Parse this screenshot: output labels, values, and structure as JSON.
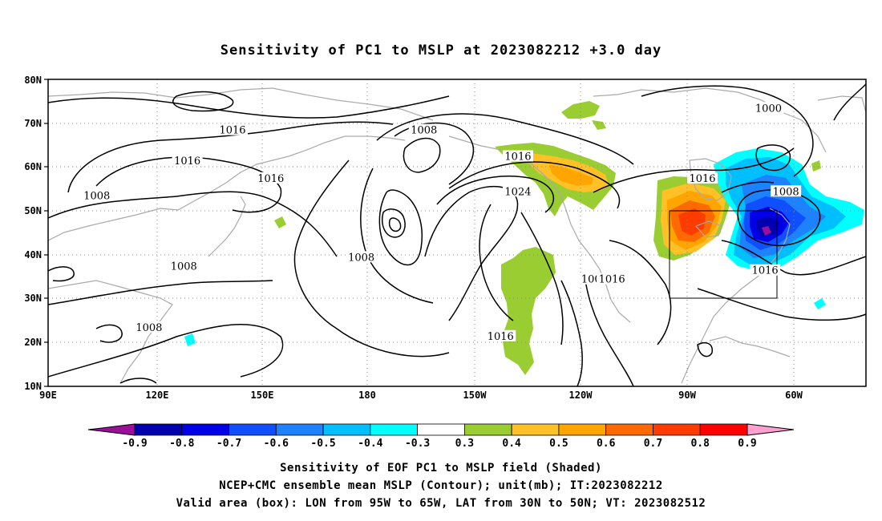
{
  "title": "Sensitivity of PC1 to MSLP at 2023082212 +3.0 day",
  "axes": {
    "lat_ticks": [
      "10N",
      "20N",
      "30N",
      "40N",
      "50N",
      "60N",
      "70N",
      "80N"
    ],
    "lon_ticks": [
      "90E",
      "120E",
      "150E",
      "180",
      "150W",
      "120W",
      "90W",
      "60W"
    ]
  },
  "contour_labels": [
    {
      "text": "1016",
      "lon": 143,
      "lat": 68
    },
    {
      "text": "1008",
      "lon": 198,
      "lat": 68
    },
    {
      "text": "1000",
      "lon": 297,
      "lat": 73
    },
    {
      "text": "1016",
      "lon": 130,
      "lat": 61
    },
    {
      "text": "1016",
      "lon": 225,
      "lat": 62
    },
    {
      "text": "1016",
      "lon": 154,
      "lat": 57
    },
    {
      "text": "1024",
      "lon": 225,
      "lat": 54
    },
    {
      "text": "1016",
      "lon": 278,
      "lat": 57
    },
    {
      "text": "1008",
      "lon": 302,
      "lat": 54
    },
    {
      "text": "1008",
      "lon": 104,
      "lat": 53
    },
    {
      "text": "1008",
      "lon": 180,
      "lat": 39
    },
    {
      "text": "1008",
      "lon": 129,
      "lat": 37
    },
    {
      "text": "1008",
      "lon": 247,
      "lat": 34
    },
    {
      "text": "1016",
      "lon": 252,
      "lat": 34
    },
    {
      "text": "1016",
      "lon": 296,
      "lat": 36
    },
    {
      "text": "1008",
      "lon": 119,
      "lat": 23
    },
    {
      "text": "1016",
      "lon": 220,
      "lat": 21
    }
  ],
  "colorbar": {
    "labels": [
      "-0.9",
      "-0.8",
      "-0.7",
      "-0.6",
      "-0.5",
      "-0.4",
      "-0.3",
      "0.3",
      "0.4",
      "0.5",
      "0.6",
      "0.7",
      "0.8",
      "0.9"
    ],
    "colors": [
      "#9b0f9b",
      "#0000b0",
      "#0000e6",
      "#0f4fff",
      "#1e82ff",
      "#00bfff",
      "#00ffff",
      "#ffffff",
      "#9acd32",
      "#ffc125",
      "#ffa500",
      "#ff6a00",
      "#ff3c00",
      "#ff0000",
      "#ffa0d0"
    ]
  },
  "captions": [
    "Sensitivity of EOF PC1 to MSLP field (Shaded)",
    "NCEP+CMC ensemble mean MSLP (Contour); unit(mb); IT:2023082212",
    "Valid area (box): LON from 95W to 65W, LAT from 30N to 50N; VT: 2023082512"
  ]
}
